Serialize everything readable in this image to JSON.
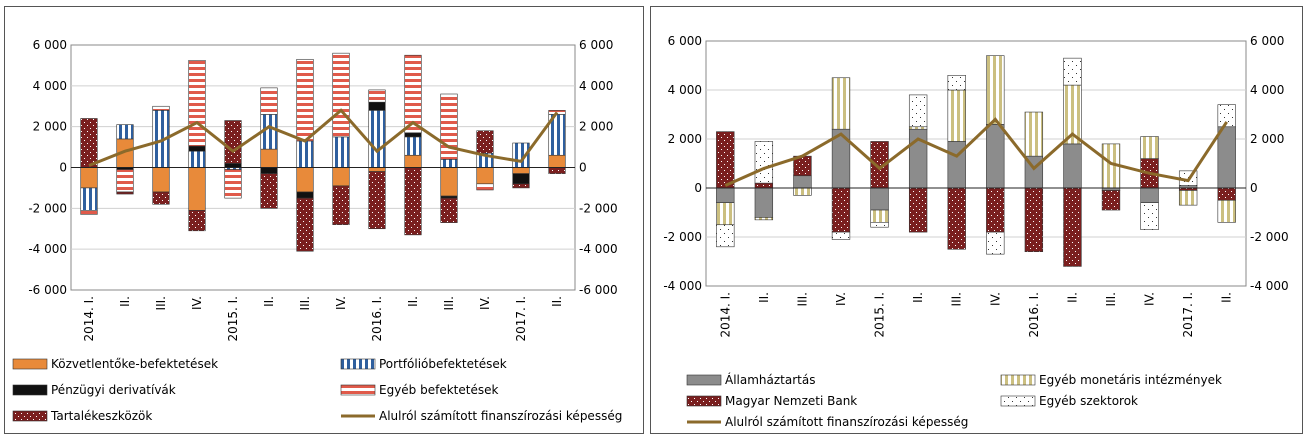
{
  "chart_data": [
    {
      "type": "bar",
      "stacked": true,
      "categories": [
        "2014. I.",
        "II.",
        "III.",
        "IV.",
        "2015. I.",
        "II.",
        "III.",
        "IV.",
        "2016. I.",
        "II.",
        "III.",
        "IV.",
        "2017. I.",
        "II."
      ],
      "ylim": [
        -6000,
        6000
      ],
      "y_ticks": [
        "6 000",
        "4 000",
        "2 000",
        "0",
        "-2 000",
        "-4 000",
        "-6 000"
      ],
      "y2_ticks": [
        "6 000",
        "4 000",
        "2 000",
        "0",
        "-2 000",
        "-4 000",
        "-6 000"
      ],
      "grid": true,
      "legend_placement": "bottom",
      "series": [
        {
          "name": "Közvetlentőke-befektetések",
          "color": "#e88a3a",
          "pattern": "solid",
          "values": [
            -1000,
            1400,
            -1200,
            -2100,
            0,
            900,
            -1200,
            -900,
            -200,
            600,
            -1400,
            -800,
            -300,
            600
          ]
        },
        {
          "name": "Portfólióbefektetések",
          "color": "#2f5f9e",
          "pattern": "vstripes",
          "values": [
            -1100,
            700,
            2800,
            800,
            -100,
            1700,
            1300,
            1500,
            2800,
            900,
            400,
            700,
            1200,
            2000
          ]
        },
        {
          "name": "Pénzügyi derivatívák",
          "color": "#111111",
          "pattern": "solid",
          "values": [
            0,
            -100,
            0,
            250,
            200,
            -300,
            -300,
            0,
            400,
            200,
            -100,
            0,
            -500,
            0
          ]
        },
        {
          "name": "Egyéb befektetések",
          "color": "#e05a4a",
          "pattern": "hstripes",
          "values": [
            -200,
            -1100,
            200,
            4200,
            -1400,
            1300,
            4000,
            4100,
            600,
            3800,
            3200,
            -300,
            0,
            200
          ]
        },
        {
          "name": "Tartalékeszközök",
          "color": "#7a1f1f",
          "pattern": "dots",
          "values": [
            2400,
            -100,
            -600,
            -1000,
            2100,
            -1700,
            -2600,
            -1900,
            -2800,
            -3300,
            -1200,
            1100,
            -200,
            -300
          ]
        }
      ],
      "line": {
        "name": "Alulról számított finanszírozási képesség",
        "color": "#8b6a2b",
        "values": [
          100,
          800,
          1300,
          2200,
          800,
          2000,
          1300,
          2800,
          800,
          2200,
          1000,
          600,
          300,
          2700
        ]
      }
    },
    {
      "type": "bar",
      "stacked": true,
      "categories": [
        "2014. I.",
        "II.",
        "III.",
        "IV.",
        "2015. I.",
        "II.",
        "III.",
        "IV.",
        "2016. I.",
        "II.",
        "III.",
        "IV.",
        "2017. I.",
        "II."
      ],
      "ylim": [
        -4000,
        6000
      ],
      "y_ticks": [
        "6 000",
        "4 000",
        "2 000",
        "0",
        "-2 000",
        "-4 000"
      ],
      "y2_ticks": [
        "6 000",
        "4 000",
        "2 000",
        "0",
        "-2 000",
        "-4 000"
      ],
      "grid": true,
      "legend_placement": "bottom",
      "series": [
        {
          "name": "Államháztartás",
          "color": "#8c8c8c",
          "pattern": "solid",
          "values": [
            -600,
            -1200,
            500,
            2400,
            -900,
            2400,
            1900,
            2600,
            1300,
            1800,
            -100,
            -600,
            100,
            2500
          ]
        },
        {
          "name": "Magyar Nemzeti Bank",
          "color": "#7a1f1f",
          "pattern": "dots",
          "values": [
            2300,
            200,
            800,
            -1800,
            1900,
            -1800,
            -2500,
            -1800,
            -2600,
            -3200,
            -800,
            1200,
            -100,
            -500
          ]
        },
        {
          "name": "Egyéb monetáris intézmények",
          "color": "#cbbf80",
          "pattern": "vstripes",
          "values": [
            -900,
            -100,
            -300,
            2100,
            -500,
            100,
            2100,
            2800,
            1800,
            2400,
            1800,
            900,
            -600,
            -900
          ]
        },
        {
          "name": "Egyéb szektorok",
          "color": "#ffffff",
          "pattern": "sparsedots",
          "values": [
            -900,
            1700,
            0,
            -300,
            -200,
            1300,
            600,
            -900,
            0,
            1100,
            0,
            -1100,
            600,
            900
          ]
        }
      ],
      "line": {
        "name": "Alulról számított finanszírozási képesség",
        "color": "#8b6a2b",
        "values": [
          100,
          800,
          1300,
          2200,
          800,
          2000,
          1300,
          2800,
          800,
          2200,
          1000,
          600,
          300,
          2700
        ]
      }
    }
  ]
}
